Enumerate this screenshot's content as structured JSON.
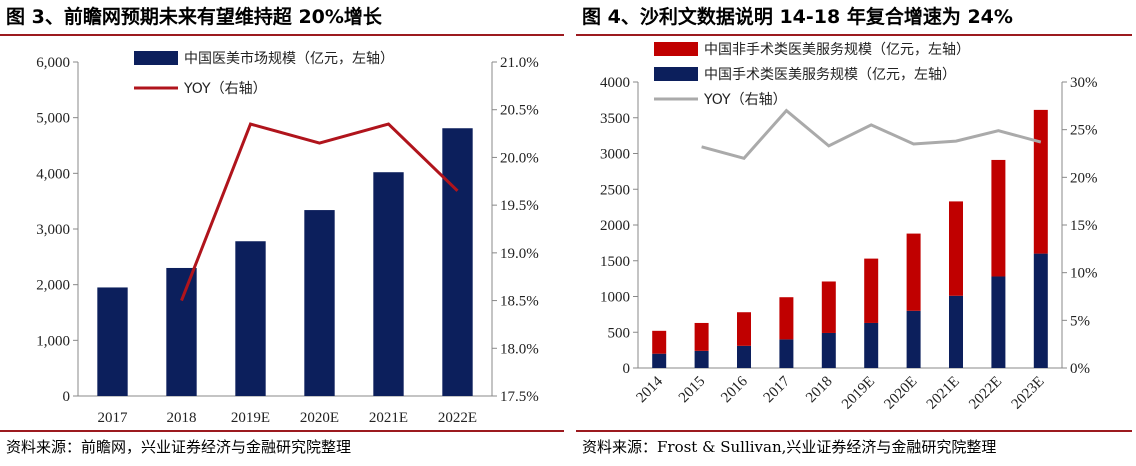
{
  "left_panel": {
    "title": "图 3、前瞻网预期未来有望维持超 20%增长",
    "source": "资料来源：前瞻网，兴业证券经济与金融研究院整理"
  },
  "right_panel": {
    "title": "图 4、沙利文数据说明 14-18 年复合增速为 24%",
    "source": "资料来源：Frost & Sullivan,兴业证券经济与金融研究院整理"
  },
  "chart_data": [
    {
      "type": "bar",
      "categories": [
        "2017",
        "2018",
        "2019E",
        "2020E",
        "2021E",
        "2022E"
      ],
      "series": [
        {
          "name": "中国医美市场规模（亿元，左轴）",
          "kind": "bar",
          "axis": "left",
          "color": "#0c1f5c",
          "values": [
            1950,
            2300,
            2780,
            3340,
            4020,
            4810
          ]
        },
        {
          "name": "YOY（右轴）",
          "kind": "line",
          "axis": "right",
          "color": "#b0141c",
          "values": [
            null,
            18.5,
            20.35,
            20.15,
            20.35,
            19.65
          ]
        }
      ],
      "left_axis": {
        "min": 0,
        "max": 6000,
        "ticks": [
          "0",
          "1,000",
          "2,000",
          "3,000",
          "4,000",
          "5,000",
          "6,000"
        ]
      },
      "right_axis": {
        "min": 17.5,
        "max": 21.0,
        "ticks": [
          "17.5%",
          "18.0%",
          "18.5%",
          "19.0%",
          "19.5%",
          "20.0%",
          "20.5%",
          "21.0%"
        ]
      },
      "grid": false,
      "legend": "top-left"
    },
    {
      "type": "bar",
      "stacked": true,
      "categories": [
        "2014",
        "2015",
        "2016",
        "2017",
        "2018",
        "2019E",
        "2020E",
        "2021E",
        "2022E",
        "2023E"
      ],
      "series": [
        {
          "name": "中国非手术类医美服务规模（亿元，左轴）",
          "kind": "bar",
          "axis": "left",
          "color": "#c00000",
          "values": [
            320,
            390,
            470,
            590,
            720,
            900,
            1080,
            1320,
            1630,
            2010
          ]
        },
        {
          "name": "中国手术类医美服务规模（亿元，左轴）",
          "kind": "bar",
          "axis": "left",
          "color": "#0c1f5c",
          "values": [
            200,
            240,
            310,
            400,
            490,
            630,
            800,
            1010,
            1280,
            1600
          ]
        },
        {
          "name": "YOY（右轴）",
          "kind": "line",
          "axis": "right",
          "color": "#aaaaaa",
          "values": [
            null,
            23.2,
            22.0,
            27.0,
            23.3,
            25.5,
            23.5,
            23.8,
            24.9,
            23.7
          ]
        }
      ],
      "left_axis": {
        "min": 0,
        "max": 4000,
        "ticks": [
          "0",
          "500",
          "1000",
          "1500",
          "2000",
          "2500",
          "3000",
          "3500",
          "4000"
        ]
      },
      "right_axis": {
        "min": 0,
        "max": 30,
        "ticks": [
          "0%",
          "5%",
          "10%",
          "15%",
          "20%",
          "25%",
          "30%"
        ]
      },
      "grid": false,
      "legend": "top-left"
    }
  ]
}
